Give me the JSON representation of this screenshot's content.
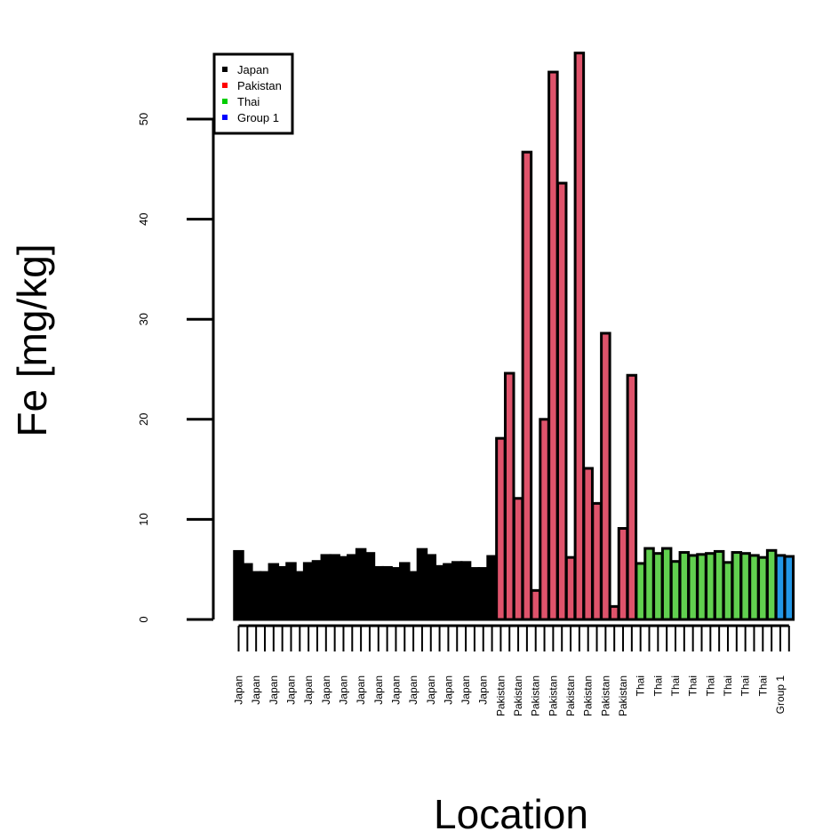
{
  "chart_data": {
    "type": "bar",
    "title": "",
    "xlabel": "Location",
    "ylabel": "Fe [mg/kg]",
    "ylim": [
      0,
      56.7
    ],
    "yticks": [
      0,
      10,
      20,
      30,
      40,
      50
    ],
    "grid": false,
    "legend": {
      "position": "top-left",
      "entries": [
        {
          "name": "Japan",
          "color": "#000000"
        },
        {
          "name": "Pakistan",
          "color": "#ff0000"
        },
        {
          "name": "Thai",
          "color": "#00cd00"
        },
        {
          "name": "Group 1",
          "color": "#0000ff"
        }
      ]
    },
    "group_colors": {
      "Japan": "#000000",
      "Pakistan": "#df536b",
      "Thai": "#61d04f",
      "Group 1": "#2297e6"
    },
    "bars": [
      {
        "label": "Japan",
        "group": "Japan",
        "value": 6.8
      },
      {
        "label": "",
        "group": "Japan",
        "value": 5.5
      },
      {
        "label": "Japan",
        "group": "Japan",
        "value": 4.7
      },
      {
        "label": "",
        "group": "Japan",
        "value": 4.7
      },
      {
        "label": "Japan",
        "group": "Japan",
        "value": 5.5
      },
      {
        "label": "",
        "group": "Japan",
        "value": 5.2
      },
      {
        "label": "Japan",
        "group": "Japan",
        "value": 5.6
      },
      {
        "label": "",
        "group": "Japan",
        "value": 4.7
      },
      {
        "label": "Japan",
        "group": "Japan",
        "value": 5.6
      },
      {
        "label": "",
        "group": "Japan",
        "value": 5.8
      },
      {
        "label": "Japan",
        "group": "Japan",
        "value": 6.4
      },
      {
        "label": "",
        "group": "Japan",
        "value": 6.4
      },
      {
        "label": "Japan",
        "group": "Japan",
        "value": 6.2
      },
      {
        "label": "",
        "group": "Japan",
        "value": 6.4
      },
      {
        "label": "Japan",
        "group": "Japan",
        "value": 7.0
      },
      {
        "label": "",
        "group": "Japan",
        "value": 6.6
      },
      {
        "label": "Japan",
        "group": "Japan",
        "value": 5.2
      },
      {
        "label": "",
        "group": "Japan",
        "value": 5.2
      },
      {
        "label": "Japan",
        "group": "Japan",
        "value": 5.1
      },
      {
        "label": "",
        "group": "Japan",
        "value": 5.6
      },
      {
        "label": "Japan",
        "group": "Japan",
        "value": 4.7
      },
      {
        "label": "",
        "group": "Japan",
        "value": 7.0
      },
      {
        "label": "Japan",
        "group": "Japan",
        "value": 6.4
      },
      {
        "label": "",
        "group": "Japan",
        "value": 5.3
      },
      {
        "label": "Japan",
        "group": "Japan",
        "value": 5.5
      },
      {
        "label": "",
        "group": "Japan",
        "value": 5.7
      },
      {
        "label": "Japan",
        "group": "Japan",
        "value": 5.7
      },
      {
        "label": "",
        "group": "Japan",
        "value": 5.1
      },
      {
        "label": "Japan",
        "group": "Japan",
        "value": 5.1
      },
      {
        "label": "",
        "group": "Japan",
        "value": 6.3
      },
      {
        "label": "Pakistan",
        "group": "Pakistan",
        "value": 18.1
      },
      {
        "label": "",
        "group": "Pakistan",
        "value": 24.6
      },
      {
        "label": "Pakistan",
        "group": "Pakistan",
        "value": 12.1
      },
      {
        "label": "",
        "group": "Pakistan",
        "value": 46.7
      },
      {
        "label": "Pakistan",
        "group": "Pakistan",
        "value": 2.9
      },
      {
        "label": "",
        "group": "Pakistan",
        "value": 20.0
      },
      {
        "label": "Pakistan",
        "group": "Pakistan",
        "value": 54.7
      },
      {
        "label": "",
        "group": "Pakistan",
        "value": 43.6
      },
      {
        "label": "Pakistan",
        "group": "Pakistan",
        "value": 6.2
      },
      {
        "label": "",
        "group": "Pakistan",
        "value": 56.6
      },
      {
        "label": "Pakistan",
        "group": "Pakistan",
        "value": 15.1
      },
      {
        "label": "",
        "group": "Pakistan",
        "value": 11.6
      },
      {
        "label": "Pakistan",
        "group": "Pakistan",
        "value": 28.6
      },
      {
        "label": "",
        "group": "Pakistan",
        "value": 1.3
      },
      {
        "label": "Pakistan",
        "group": "Pakistan",
        "value": 9.1
      },
      {
        "label": "",
        "group": "Pakistan",
        "value": 24.4
      },
      {
        "label": "Thai",
        "group": "Thai",
        "value": 5.6
      },
      {
        "label": "",
        "group": "Thai",
        "value": 7.1
      },
      {
        "label": "Thai",
        "group": "Thai",
        "value": 6.6
      },
      {
        "label": "",
        "group": "Thai",
        "value": 7.1
      },
      {
        "label": "Thai",
        "group": "Thai",
        "value": 5.8
      },
      {
        "label": "",
        "group": "Thai",
        "value": 6.7
      },
      {
        "label": "Thai",
        "group": "Thai",
        "value": 6.4
      },
      {
        "label": "",
        "group": "Thai",
        "value": 6.5
      },
      {
        "label": "Thai",
        "group": "Thai",
        "value": 6.6
      },
      {
        "label": "",
        "group": "Thai",
        "value": 6.8
      },
      {
        "label": "Thai",
        "group": "Thai",
        "value": 5.7
      },
      {
        "label": "",
        "group": "Thai",
        "value": 6.7
      },
      {
        "label": "Thai",
        "group": "Thai",
        "value": 6.6
      },
      {
        "label": "",
        "group": "Thai",
        "value": 6.4
      },
      {
        "label": "Thai",
        "group": "Thai",
        "value": 6.2
      },
      {
        "label": "",
        "group": "Thai",
        "value": 6.9
      },
      {
        "label": "Group 1",
        "group": "Group 1",
        "value": 6.4
      },
      {
        "label": "",
        "group": "Group 1",
        "value": 6.3
      }
    ]
  }
}
